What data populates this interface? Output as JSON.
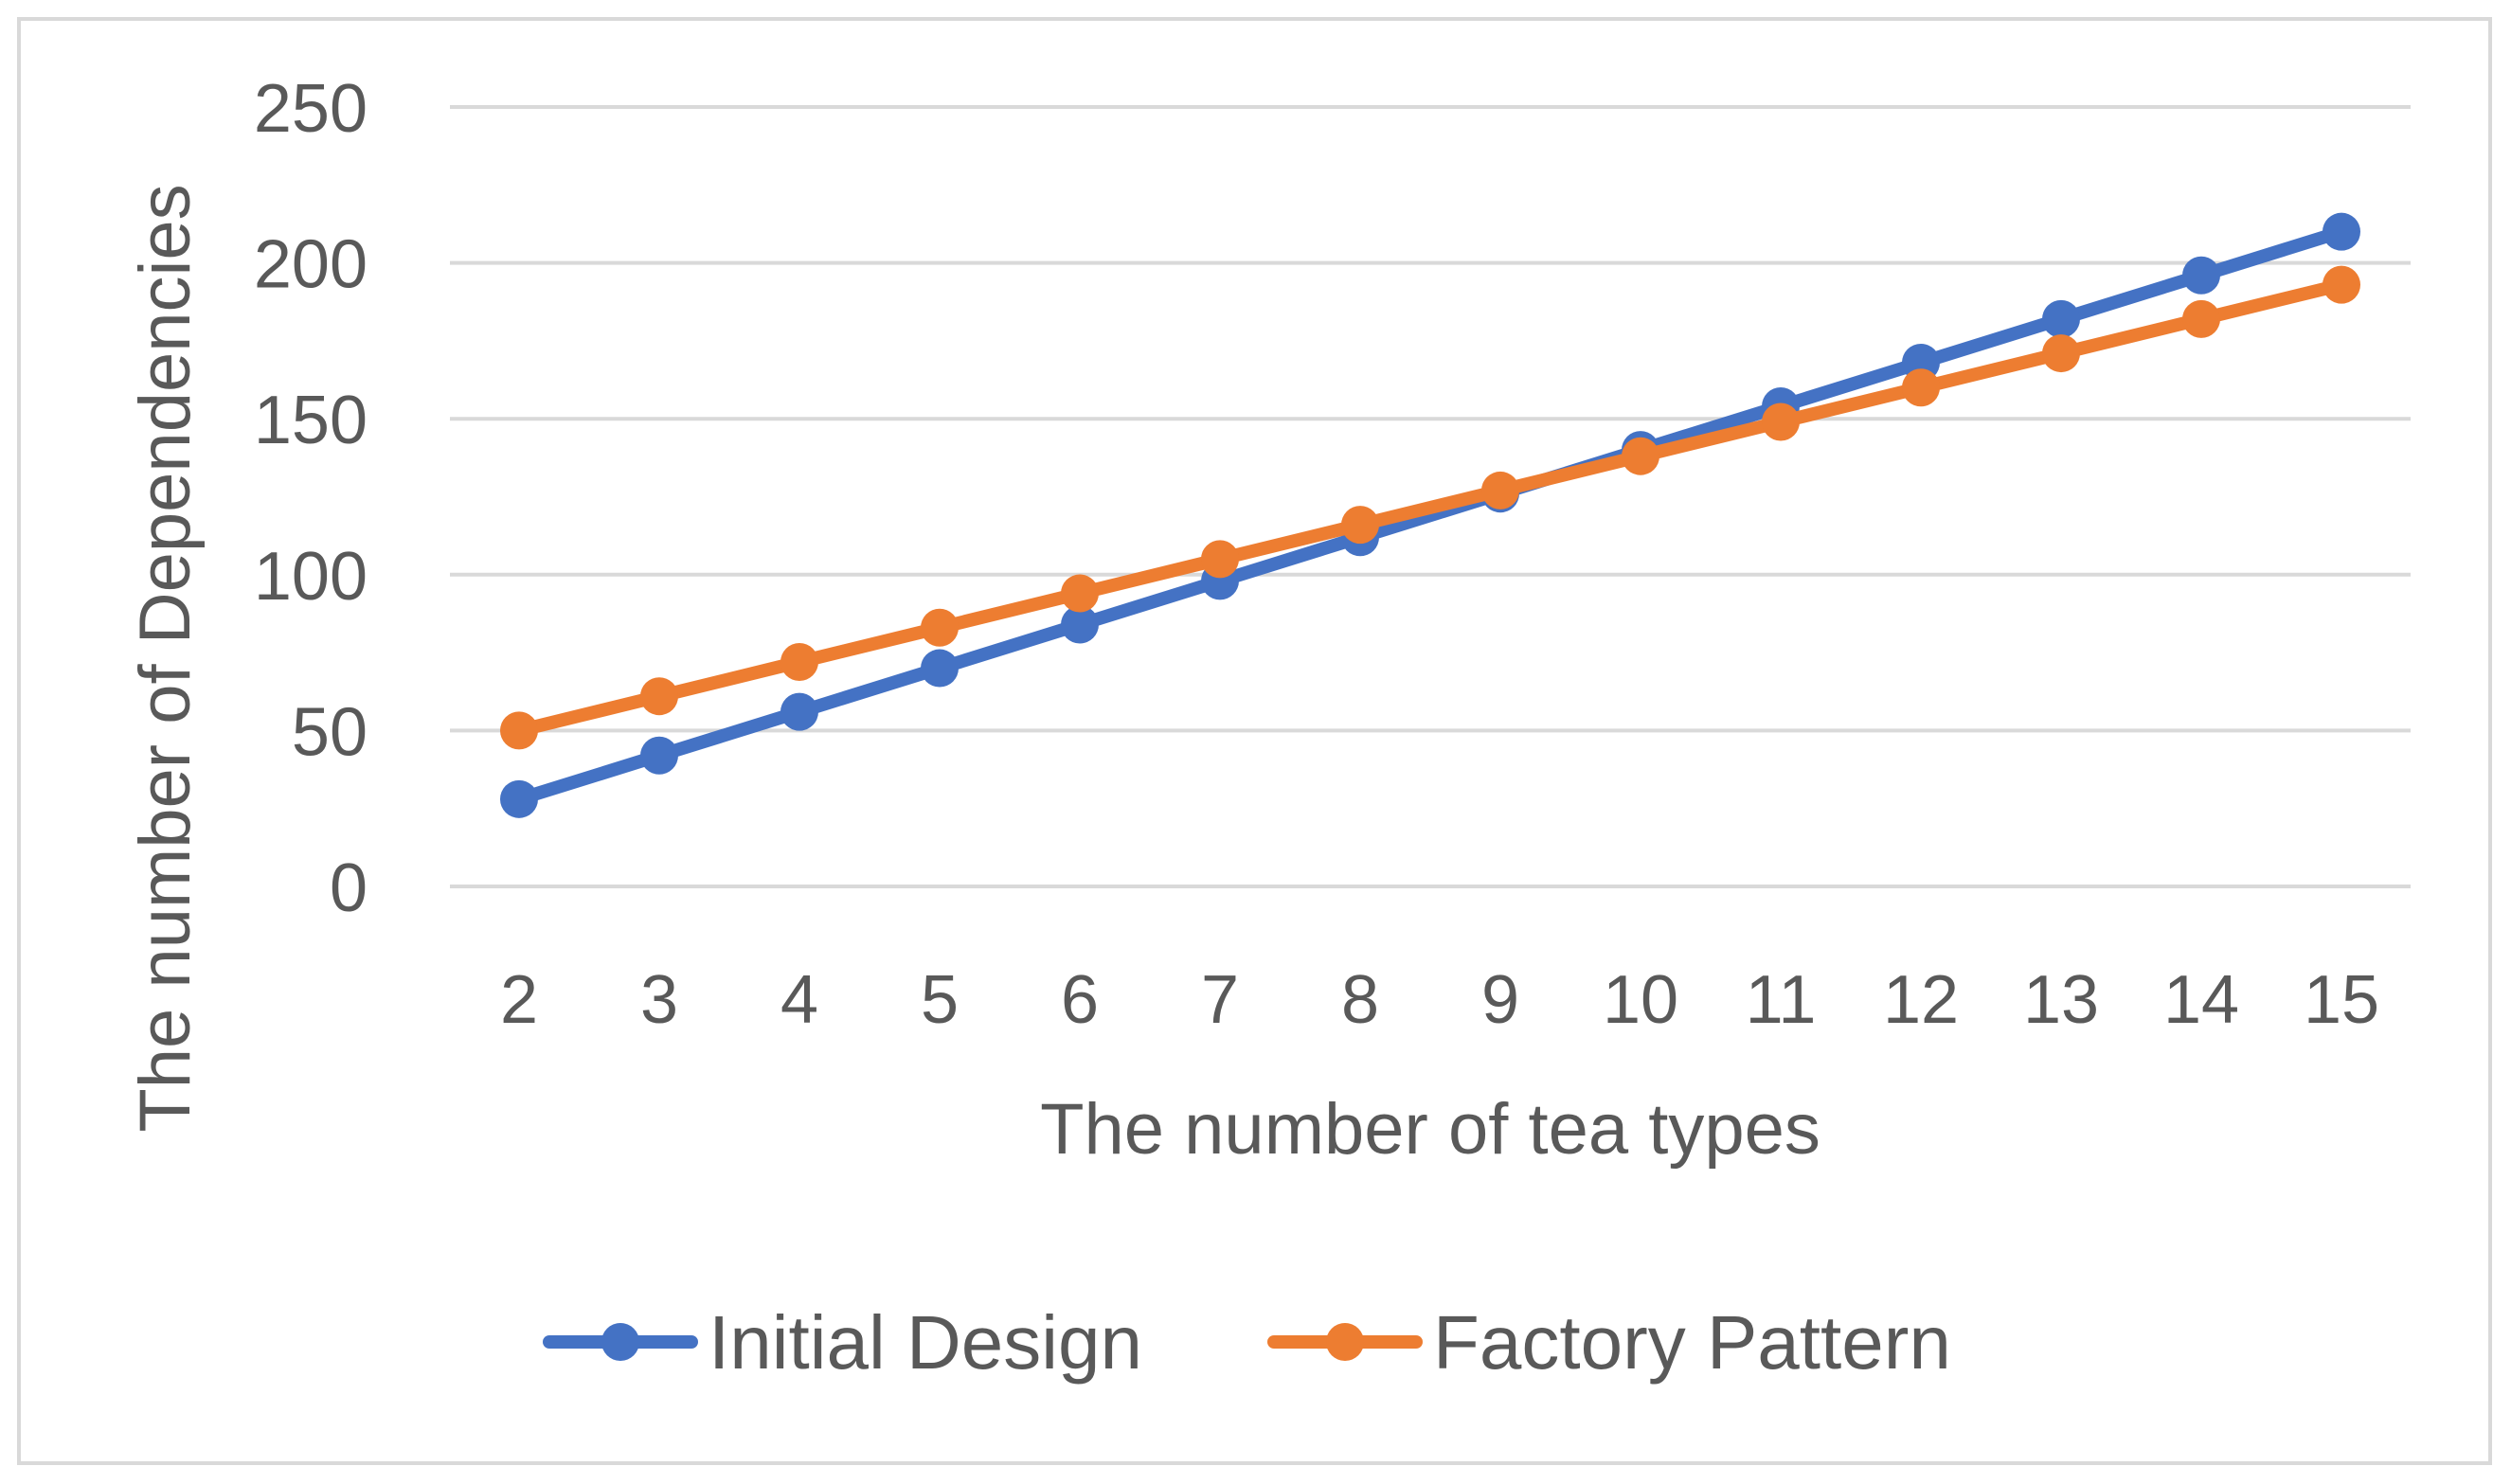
{
  "chart_data": {
    "type": "line",
    "title": "",
    "xlabel": "The number of tea types",
    "ylabel": "The number of Dependencies",
    "x": [
      2,
      3,
      4,
      5,
      6,
      7,
      8,
      9,
      10,
      11,
      12,
      13,
      14,
      15
    ],
    "x_tick_labels": [
      "2",
      "3",
      "4",
      "5",
      "6",
      "7",
      "8",
      "9",
      "10",
      "11",
      "12",
      "13",
      "14",
      "15"
    ],
    "ylim": [
      0,
      250
    ],
    "y_ticks": [
      0,
      50,
      100,
      150,
      200,
      250
    ],
    "y_tick_labels": [
      "0",
      "50",
      "100",
      "150",
      "200",
      "250"
    ],
    "grid": "horizontal",
    "legend": "bottom",
    "series": [
      {
        "name": "Initial Design",
        "color": "#4472c4",
        "values": [
          28,
          42,
          56,
          70,
          84,
          98,
          112,
          126,
          140,
          154,
          168,
          182,
          196,
          210
        ]
      },
      {
        "name": "Factory Pattern",
        "color": "#ed7d31",
        "values": [
          50,
          61,
          72,
          83,
          94,
          105,
          116,
          127,
          138,
          149,
          160,
          171,
          182,
          193
        ]
      }
    ]
  }
}
